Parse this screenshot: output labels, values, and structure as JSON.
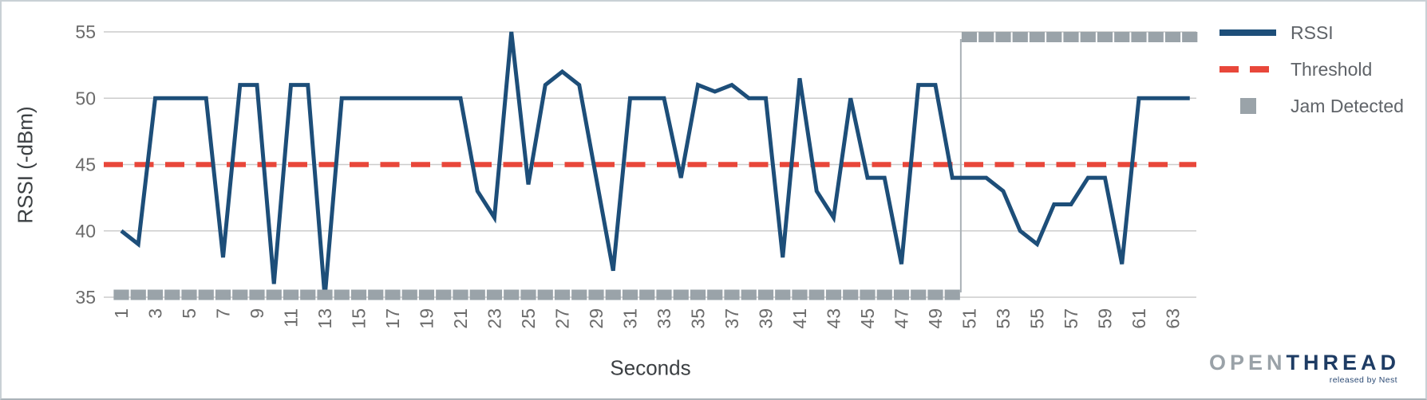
{
  "chart_data": {
    "type": "line",
    "title": "",
    "xlabel": "Seconds",
    "ylabel": "RSSI (-dBm)",
    "ylim": [
      35,
      55
    ],
    "yticks": [
      55,
      50,
      45,
      40,
      35
    ],
    "xticks": [
      1,
      3,
      5,
      7,
      9,
      11,
      13,
      15,
      17,
      19,
      21,
      23,
      25,
      27,
      29,
      31,
      33,
      35,
      37,
      39,
      41,
      43,
      45,
      47,
      49,
      51,
      53,
      55,
      57,
      59,
      61,
      63
    ],
    "x": [
      1,
      2,
      3,
      4,
      5,
      6,
      7,
      8,
      9,
      10,
      11,
      12,
      13,
      14,
      15,
      16,
      17,
      18,
      19,
      20,
      21,
      22,
      23,
      24,
      25,
      26,
      27,
      28,
      29,
      30,
      31,
      32,
      33,
      34,
      35,
      36,
      37,
      38,
      39,
      40,
      41,
      42,
      43,
      44,
      45,
      46,
      47,
      48,
      49,
      50,
      51,
      52,
      53,
      54,
      55,
      56,
      57,
      58,
      59,
      60,
      61,
      62,
      63,
      64
    ],
    "grid": "horizontal",
    "legend_position": "right",
    "threshold_value": 45,
    "series": [
      {
        "name": "RSSI",
        "type": "line",
        "color": "#1d4e79",
        "values": [
          40,
          39,
          50,
          50,
          50,
          50,
          38,
          51,
          51,
          36,
          51,
          51,
          35,
          50,
          50,
          50,
          50,
          50,
          50,
          50,
          50,
          43,
          41,
          55,
          43.5,
          51,
          52,
          51,
          44,
          37,
          50,
          50,
          50,
          44,
          51,
          50.5,
          51,
          50,
          50,
          38,
          51.5,
          43,
          41,
          50,
          44,
          44,
          37.5,
          51,
          51,
          44,
          44,
          44,
          43,
          40,
          39,
          42,
          42,
          44,
          44,
          37.5,
          50,
          50,
          50,
          50
        ]
      },
      {
        "name": "Threshold",
        "type": "dashed-line",
        "color": "#e8473a",
        "values": [
          45,
          45,
          45,
          45,
          45,
          45,
          45,
          45,
          45,
          45,
          45,
          45,
          45,
          45,
          45,
          45,
          45,
          45,
          45,
          45,
          45,
          45,
          45,
          45,
          45,
          45,
          45,
          45,
          45,
          45,
          45,
          45,
          45,
          45,
          45,
          45,
          45,
          45,
          45,
          45,
          45,
          45,
          45,
          45,
          45,
          45,
          45,
          45,
          45,
          45,
          45,
          45,
          45,
          45,
          45,
          45,
          45,
          45,
          45,
          45,
          45,
          45,
          45,
          45
        ]
      },
      {
        "name": "Jam Detected",
        "type": "square-markers",
        "color": "#9aa3a9",
        "values": [
          35,
          35,
          35,
          35,
          35,
          35,
          35,
          35,
          35,
          35,
          35,
          35,
          35,
          35,
          35,
          35,
          35,
          35,
          35,
          35,
          35,
          35,
          35,
          35,
          35,
          35,
          35,
          35,
          35,
          35,
          35,
          35,
          35,
          35,
          35,
          35,
          35,
          35,
          35,
          35,
          35,
          35,
          35,
          35,
          35,
          35,
          35,
          35,
          35,
          35,
          55,
          55,
          55,
          55,
          55,
          55,
          55,
          55,
          55,
          55,
          55,
          55,
          55,
          55
        ]
      }
    ]
  },
  "axes": {
    "x_title": "Seconds",
    "y_title": "RSSI (-dBm)"
  },
  "legend": {
    "items": [
      {
        "label": "RSSI",
        "swatch": "line-swatch",
        "color": "#1d4e79"
      },
      {
        "label": "Threshold",
        "swatch": "dash-swatch",
        "color": "#e8473a"
      },
      {
        "label": "Jam Detected",
        "swatch": "square-swatch",
        "color": "#9aa3a9"
      }
    ],
    "text_color": "#5f6368"
  },
  "logo": {
    "part1": "OPEN",
    "part2": "THREAD",
    "tagline": "released by Nest",
    "part1_color": "#9aa2a8",
    "part2_color": "#1e3c64",
    "tagline_color": "#2b4a74"
  },
  "colors": {
    "gridline": "#cccccc",
    "tick_label": "#6b6b6b",
    "axis_title": "#3c4043",
    "jam_connector": "#a9b1b6",
    "background": "#ffffff"
  }
}
